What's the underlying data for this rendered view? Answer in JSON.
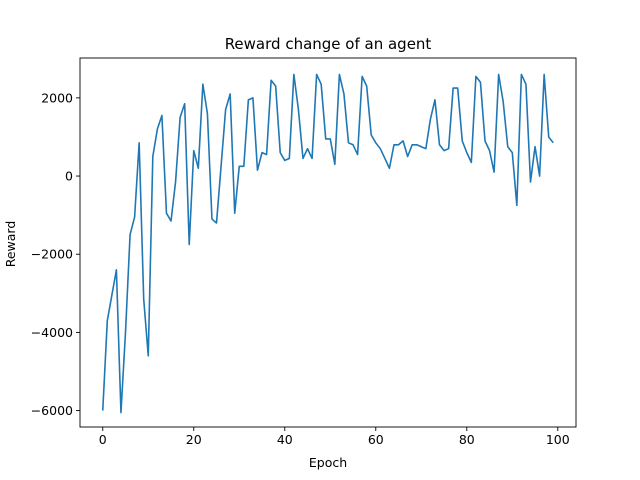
{
  "chart_data": {
    "type": "line",
    "title": "Reward change of an agent",
    "xlabel": "Epoch",
    "ylabel": "Reward",
    "xlim": [
      -5,
      104
    ],
    "ylim": [
      -6420,
      3020
    ],
    "xticks": [
      0,
      20,
      40,
      60,
      80,
      100
    ],
    "xtick_labels": [
      "0",
      "20",
      "40",
      "60",
      "80",
      "100"
    ],
    "yticks": [
      -6000,
      -4000,
      -2000,
      0,
      2000
    ],
    "ytick_labels": [
      "−6000",
      "−4000",
      "−2000",
      "0",
      "2000"
    ],
    "grid": false,
    "line_color": "#1f77b4",
    "series": [
      {
        "x": [
          0,
          1,
          2,
          3,
          4,
          5,
          6,
          7,
          8,
          9,
          10,
          11,
          12,
          13,
          14,
          15,
          16,
          17,
          18,
          19,
          20,
          21,
          22,
          23,
          24,
          25,
          26,
          27,
          28,
          29,
          30,
          31,
          32,
          33,
          34,
          35,
          36,
          37,
          38,
          39,
          40,
          41,
          42,
          43,
          44,
          45,
          46,
          47,
          48,
          49,
          50,
          51,
          52,
          53,
          54,
          55,
          56,
          57,
          58,
          59,
          60,
          61,
          62,
          63,
          64,
          65,
          66,
          67,
          68,
          69,
          70,
          71,
          72,
          73,
          74,
          75,
          76,
          77,
          78,
          79,
          80,
          81,
          82,
          83,
          84,
          85,
          86,
          87,
          88,
          89,
          90,
          91,
          92,
          93,
          94,
          95,
          96,
          97,
          98,
          99
        ],
        "values": [
          -6000,
          -3700,
          -3050,
          -2400,
          -6050,
          -4000,
          -1500,
          -1050,
          850,
          -3150,
          -4600,
          500,
          1200,
          1550,
          -950,
          -1150,
          -150,
          1500,
          1850,
          -1750,
          650,
          200,
          2350,
          1600,
          -1100,
          -1200,
          250,
          1700,
          2100,
          -950,
          250,
          250,
          1950,
          2000,
          150,
          600,
          550,
          2450,
          2300,
          600,
          400,
          450,
          2600,
          1700,
          450,
          700,
          450,
          2600,
          2350,
          950,
          950,
          300,
          2600,
          2100,
          850,
          800,
          550,
          2550,
          2300,
          1050,
          850,
          700,
          450,
          200,
          800,
          800,
          900,
          500,
          800,
          800,
          750,
          700,
          1450,
          1950,
          800,
          650,
          700,
          2250,
          2250,
          900,
          600,
          350,
          2550,
          2400,
          900,
          650,
          100,
          2600,
          1900,
          750,
          600,
          -750,
          2600,
          2350,
          -150,
          750,
          0,
          2600,
          1000,
          850
        ]
      }
    ]
  }
}
